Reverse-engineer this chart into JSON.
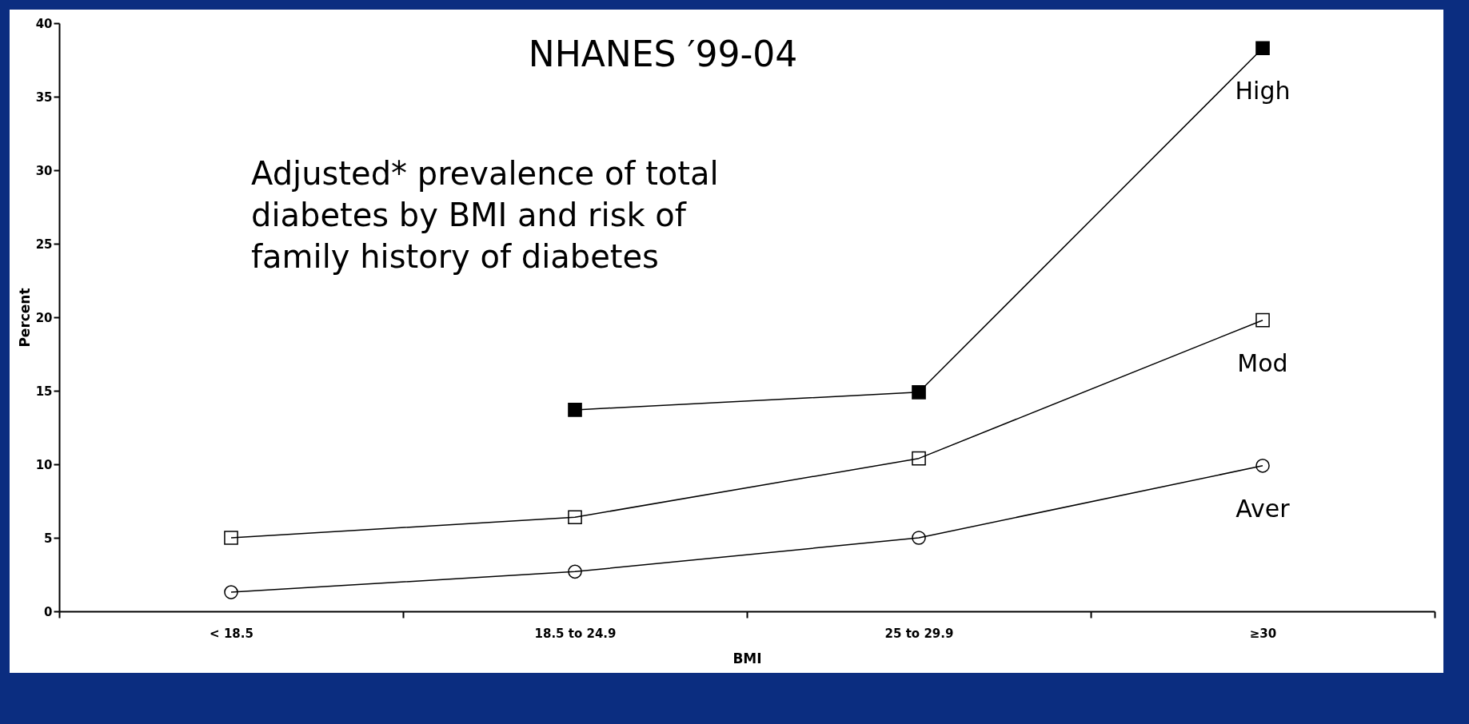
{
  "chart_data": {
    "type": "line",
    "title": "NHANES ′99-04",
    "xlabel": "BMI",
    "ylabel": "Percent",
    "annotations": [
      "Adjusted* prevalence of total diabetes by BMI and risk of family history of diabetes"
    ],
    "categories": [
      "< 18.5",
      "18.5 to 24.9",
      "25 to 29.9",
      "≥30"
    ],
    "series": [
      {
        "name": "High",
        "color": "#000000",
        "marker": "square",
        "values": [
          null,
          13.7,
          14.9,
          38.3
        ]
      },
      {
        "name": "Mod",
        "color": "#000000",
        "marker": "square",
        "values": [
          5.0,
          6.4,
          10.4,
          19.8
        ]
      },
      {
        "name": "Aver",
        "color": "#000000",
        "marker": "circle",
        "values": [
          1.3,
          2.7,
          5.0,
          9.9
        ]
      }
    ],
    "ylim": [
      0,
      40
    ],
    "yticks": [
      0,
      5,
      10,
      15,
      20,
      25,
      30,
      35,
      40
    ],
    "grid": false,
    "legend": false,
    "line_style": "solid"
  }
}
